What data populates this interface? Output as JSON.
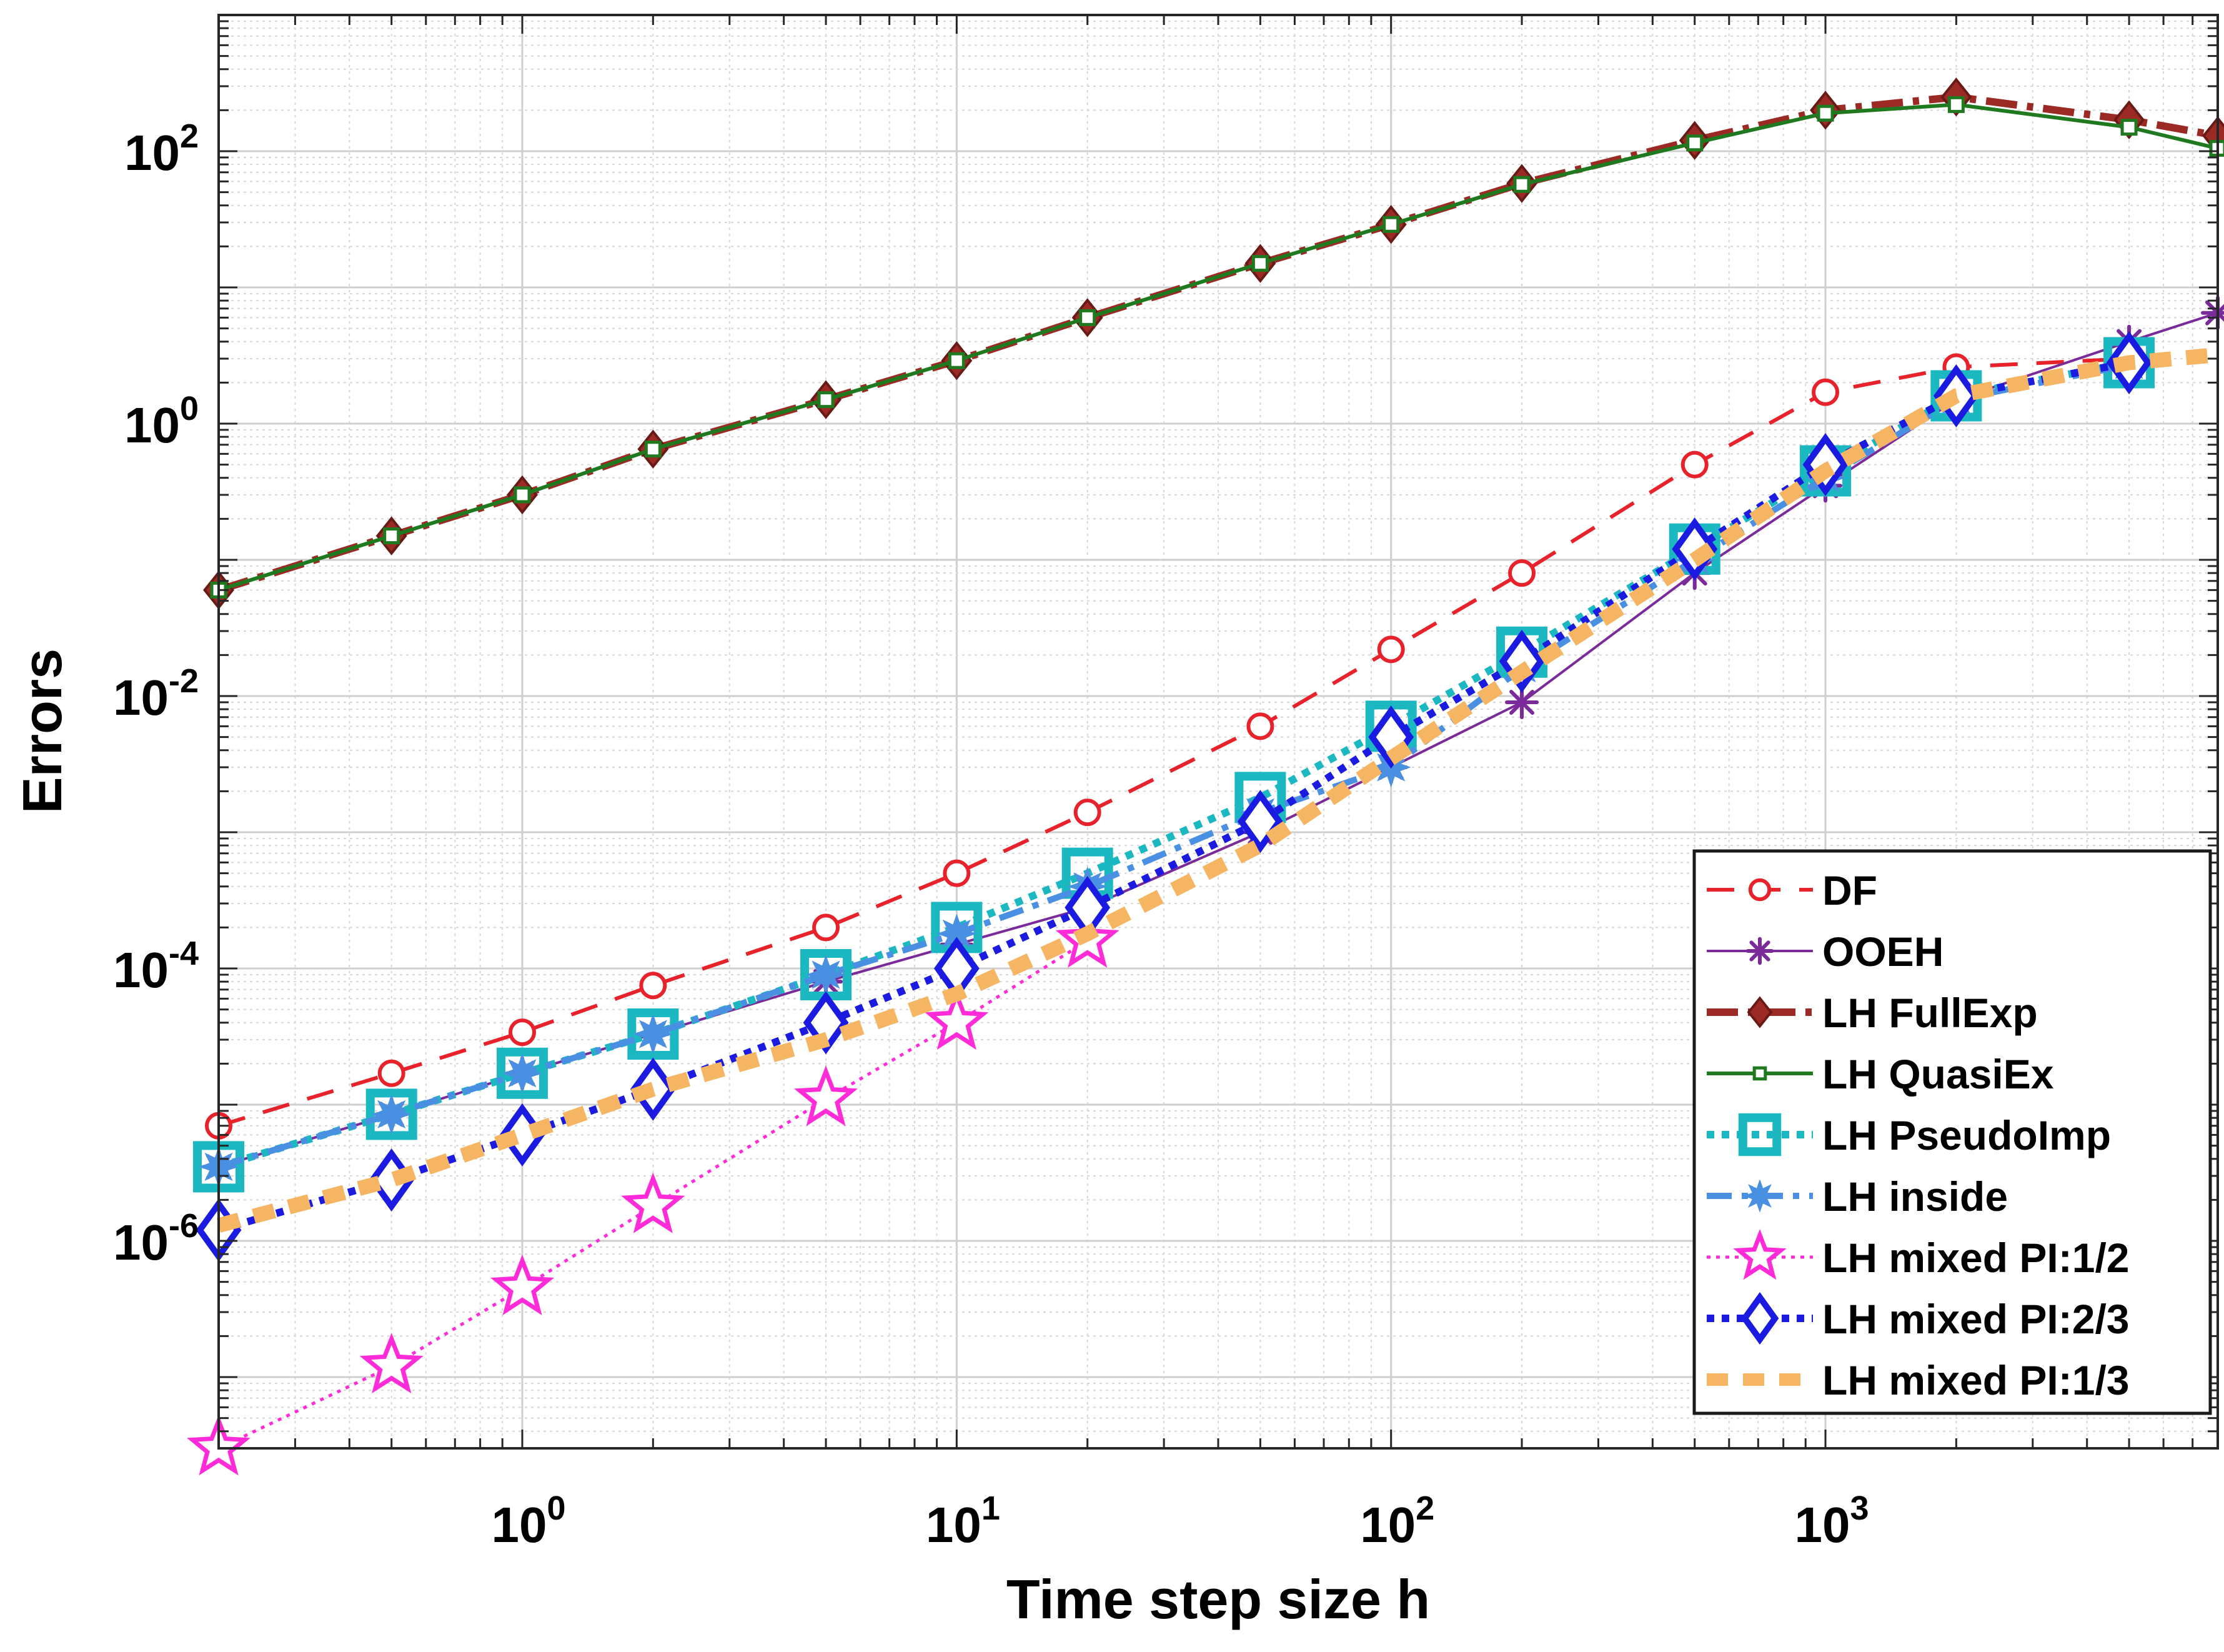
{
  "chart_data": {
    "type": "line",
    "title": "",
    "xlabel": "Time step size h",
    "ylabel": "Errors",
    "xscale": "log",
    "yscale": "log",
    "xlim": [
      0.2,
      8000
    ],
    "ylim": [
      3e-08,
      1000
    ],
    "grid": true,
    "minor_grid": true,
    "legend_position": "bottom-right",
    "x_ticks": [
      {
        "base": "10",
        "exp": "0"
      },
      {
        "base": "10",
        "exp": "1"
      },
      {
        "base": "10",
        "exp": "2"
      },
      {
        "base": "10",
        "exp": "3"
      }
    ],
    "y_ticks": [
      {
        "base": "10",
        "exp": "-6"
      },
      {
        "base": "10",
        "exp": "-4"
      },
      {
        "base": "10",
        "exp": "-2"
      },
      {
        "base": "10",
        "exp": "0"
      },
      {
        "base": "10",
        "exp": "2"
      }
    ],
    "series": [
      {
        "name": "DF",
        "color": "#e8222b",
        "dash": "dashed",
        "marker": "circle",
        "x": [
          0.2,
          0.5,
          1,
          2,
          5,
          10,
          20,
          50,
          100,
          200,
          500,
          1000,
          2000,
          5000
        ],
        "y": [
          7e-06,
          1.7e-05,
          3.4e-05,
          7.5e-05,
          0.0002,
          0.0005,
          0.0014,
          0.006,
          0.022,
          0.08,
          0.5,
          1.7,
          2.6,
          3.0
        ]
      },
      {
        "name": " OOEH",
        "color": "#7b2a9a",
        "dash": "solid",
        "marker": "asterisk",
        "x": [
          0.2,
          0.5,
          1,
          2,
          5,
          10,
          20,
          50,
          100,
          200,
          500,
          1000,
          2000,
          5000,
          8000
        ],
        "y": [
          3.5e-06,
          8.5e-06,
          1.7e-05,
          3.3e-05,
          8e-05,
          0.00015,
          0.00028,
          0.001,
          0.003,
          0.009,
          0.08,
          0.35,
          1.5,
          4.0,
          6.5
        ]
      },
      {
        "name": "LH FullExp",
        "color": "#9c2a24",
        "dash": "dash-dot",
        "marker": "diamond-filled",
        "x": [
          0.2,
          0.5,
          1,
          2,
          5,
          10,
          20,
          50,
          100,
          200,
          500,
          1000,
          2000,
          5000,
          8000
        ],
        "y": [
          0.06,
          0.15,
          0.3,
          0.65,
          1.5,
          2.9,
          6,
          15,
          29,
          58,
          120,
          200,
          250,
          170,
          130
        ]
      },
      {
        "name": "LH QuasiEx",
        "color": "#1f7a1f",
        "dash": "solid",
        "marker": "square-small",
        "x": [
          0.2,
          0.5,
          1,
          2,
          5,
          10,
          20,
          50,
          100,
          200,
          500,
          1000,
          2000,
          5000,
          8000
        ],
        "y": [
          0.06,
          0.15,
          0.3,
          0.65,
          1.5,
          2.9,
          6,
          15,
          29,
          57,
          115,
          190,
          220,
          150,
          105
        ]
      },
      {
        "name": "LH PseudoImp",
        "color": "#1bb8c2",
        "dash": "dotted",
        "marker": "square-open",
        "x": [
          0.2,
          0.5,
          1,
          2,
          5,
          10,
          20,
          50,
          100,
          200,
          500,
          1000,
          2000,
          5000
        ],
        "y": [
          3.5e-06,
          8.5e-06,
          1.7e-05,
          3.3e-05,
          9e-05,
          0.0002,
          0.0005,
          0.0018,
          0.006,
          0.021,
          0.12,
          0.45,
          1.6,
          2.8
        ]
      },
      {
        "name": "LH inside",
        "color": "#4a90e2",
        "dash": "dash-dot",
        "marker": "star-filled",
        "x": [
          0.2,
          0.5,
          1,
          2,
          5,
          10,
          20,
          50,
          100,
          200,
          500,
          1000,
          2000,
          5000
        ],
        "y": [
          3.5e-06,
          8.5e-06,
          1.7e-05,
          3.3e-05,
          9e-05,
          0.00018,
          0.0004,
          0.0014,
          0.003,
          0.016,
          0.1,
          0.4,
          1.5,
          2.7
        ]
      },
      {
        "name": "LH mixed PI:1/2",
        "color": "#ff2bd8",
        "dash": "dotted",
        "marker": "pentagram",
        "x": [
          0.2,
          0.5,
          1,
          2,
          5,
          10,
          20
        ],
        "y": [
          3e-08,
          1.2e-07,
          4.5e-07,
          1.8e-06,
          1.1e-05,
          4e-05,
          0.00016
        ]
      },
      {
        "name": "LH mixed PI:2/3",
        "color": "#1a1ae0",
        "dash": "dotted",
        "marker": "diamond-open",
        "x": [
          0.2,
          0.5,
          1,
          2,
          5,
          10,
          20,
          50,
          100,
          200,
          500,
          1000,
          2000,
          5000
        ],
        "y": [
          1.2e-06,
          2.8e-06,
          6e-06,
          1.3e-05,
          4e-05,
          0.0001,
          0.00028,
          0.0012,
          0.005,
          0.018,
          0.12,
          0.5,
          1.6,
          2.8
        ]
      },
      {
        "name": "LH mixed PI:1/3",
        "color": "#f6b562",
        "dash": "dashed-thick",
        "marker": "none",
        "x": [
          0.2,
          0.5,
          1,
          2,
          5,
          10,
          20,
          50,
          100,
          200,
          500,
          1000,
          2000,
          5000,
          8000
        ],
        "y": [
          1.3e-06,
          2.8e-06,
          6e-06,
          1.3e-05,
          3e-05,
          6.5e-05,
          0.00018,
          0.0008,
          0.0035,
          0.015,
          0.1,
          0.45,
          1.6,
          2.8,
          3.2
        ]
      }
    ]
  }
}
